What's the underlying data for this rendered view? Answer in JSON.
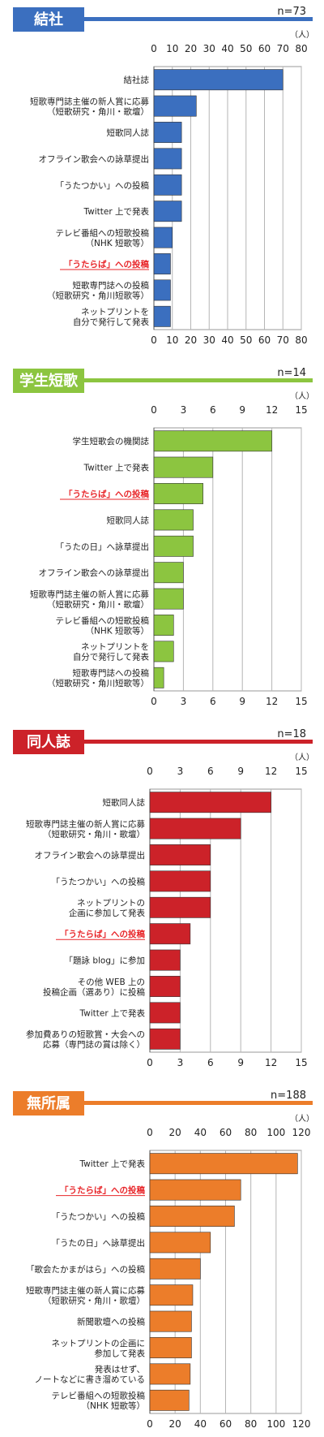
{
  "chart_data": [
    {
      "type": "bar",
      "title": "結社",
      "n_label": "n=73",
      "unit": "（人）",
      "color": "#3b6fbf",
      "xlim": [
        0,
        80
      ],
      "ticks": [
        "0",
        "10",
        "20",
        "30",
        "40",
        "50",
        "60",
        "70",
        "80"
      ],
      "highlight": "「うたらば」への投稿",
      "categories": [
        "結社誌",
        "短歌専門誌主催の新人賞に応募\n（短歌研究・角川・歌壇）",
        "短歌同人誌",
        "オフライン歌会への詠草提出",
        "「うたつかい」への投稿",
        "Twitter 上で発表",
        "テレビ番組への短歌投稿\n（NHK 短歌等）",
        "「うたらば」への投稿",
        "短歌専門誌への投稿\n（短歌研究・角川短歌等）",
        "ネットプリントを\n自分で発行して発表"
      ],
      "values": [
        70,
        23,
        15,
        15,
        15,
        15,
        10,
        9,
        9,
        9
      ]
    },
    {
      "type": "bar",
      "title": "学生短歌",
      "n_label": "n=14",
      "unit": "（人）",
      "color": "#8cc540",
      "xlim": [
        0,
        15
      ],
      "ticks": [
        "0",
        "3",
        "6",
        "9",
        "12",
        "15"
      ],
      "highlight": "「うたらば」への投稿",
      "categories": [
        "学生短歌会の機関誌",
        "Twitter 上で発表",
        "「うたらば」への投稿",
        "短歌同人誌",
        "「うたの日」へ詠草提出",
        "オフライン歌会への詠草提出",
        "短歌専門誌主催の新人賞に応募\n（短歌研究・角川・歌壇）",
        "テレビ番組への短歌投稿\n（NHK 短歌等）",
        "ネットプリントを\n自分で発行して発表",
        "短歌専門誌への投稿\n（短歌研究・角川短歌等）"
      ],
      "values": [
        12,
        6,
        5,
        4,
        4,
        3,
        3,
        2,
        2,
        1
      ]
    },
    {
      "type": "bar",
      "title": "同人誌",
      "n_label": "n=18",
      "unit": "（人）",
      "color": "#cc2229",
      "xlim": [
        0,
        15
      ],
      "ticks": [
        "0",
        "3",
        "6",
        "9",
        "12",
        "15"
      ],
      "highlight": "「うたらば」への投稿",
      "categories": [
        "短歌同人誌",
        "短歌専門誌主催の新人賞に応募\n（短歌研究・角川・歌壇）",
        "オフライン歌会への詠草提出",
        "「うたつかい」への投稿",
        "ネットプリントの\n企画に参加して発表",
        "「うたらば」への投稿",
        "「題詠 blog」に参加",
        "その他 WEB 上の\n投稿企画（選あり）に投稿",
        "Twitter 上で発表",
        "参加費ありの短歌賞・大会への\n応募（専門誌の賞は除く）"
      ],
      "values": [
        12,
        9,
        6,
        6,
        6,
        4,
        3,
        3,
        3,
        3
      ]
    },
    {
      "type": "bar",
      "title": "無所属",
      "n_label": "n=188",
      "unit": "（人）",
      "color": "#ec7d2a",
      "xlim": [
        0,
        120
      ],
      "ticks": [
        "0",
        "20",
        "40",
        "60",
        "80",
        "100",
        "120"
      ],
      "highlight": "「うたらば」への投稿",
      "categories": [
        "Twitter 上で発表",
        "「うたらば」への投稿",
        "「うたつかい」への投稿",
        "「うたの日」へ詠草提出",
        "「歌会たかまがはら」への投稿",
        "短歌専門誌主催の新人賞に応募\n（短歌研究・角川・歌壇）",
        "新聞歌壇への投稿",
        "ネットプリントの企画に\n参加して発表",
        "発表はせず、\nノートなどに書き溜めている",
        "テレビ番組への短歌投稿\n（NHK 短歌等）"
      ],
      "values": [
        117,
        72,
        67,
        48,
        40,
        34,
        33,
        33,
        32,
        31
      ]
    }
  ]
}
